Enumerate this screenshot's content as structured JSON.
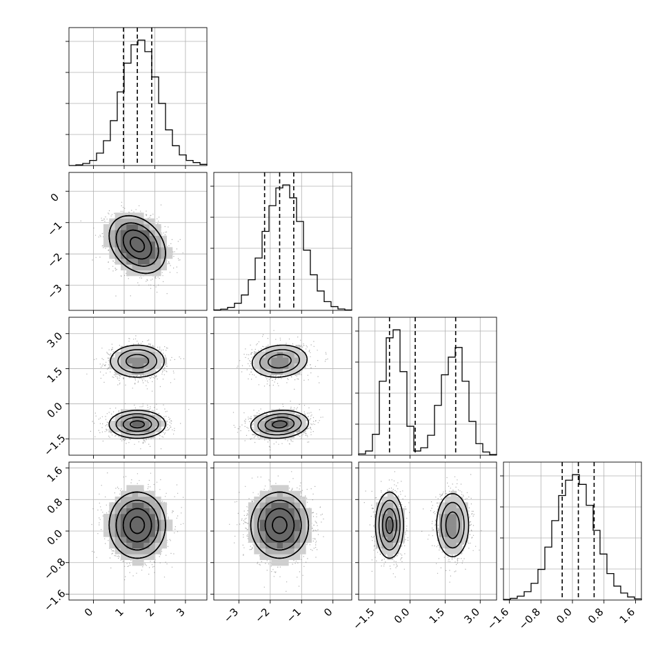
{
  "chart_data": {
    "type": "corner",
    "parameters": [
      {
        "range": [
          -0.8,
          3.7
        ],
        "ticks": [
          0,
          1,
          2,
          3
        ],
        "tick_labels": [
          "0",
          "1",
          "2",
          "3"
        ],
        "quantiles": [
          0.98,
          1.43,
          1.9
        ],
        "hist_counts": [
          0,
          0.3,
          0.9,
          2.2,
          5.4,
          10.8,
          19.5,
          32.0,
          44.5,
          52.5,
          54.5,
          49.5,
          38.5,
          27.0,
          15.5,
          8.6,
          4.6,
          2.2,
          1.3,
          0.5
        ]
      },
      {
        "range": [
          -3.8,
          0.6
        ],
        "ticks": [
          -3,
          -2,
          -1,
          0
        ],
        "tick_labels": [
          "−3",
          "−2",
          "−1",
          "0"
        ],
        "quantiles": [
          -2.18,
          -1.7,
          -1.25
        ],
        "hist_counts": [
          0.2,
          0.6,
          1.5,
          3.6,
          7.8,
          15.5,
          26.5,
          40.0,
          53.0,
          62.0,
          63.5,
          57.0,
          45.0,
          30.5,
          18.0,
          9.8,
          4.4,
          1.9,
          0.7,
          0.2
        ]
      },
      {
        "range": [
          -2.2,
          3.7
        ],
        "ticks": [
          -1.5,
          0.0,
          1.5,
          3.0
        ],
        "tick_labels": [
          "−1.5",
          "0.0",
          "1.5",
          "3.0"
        ],
        "quantiles": [
          -0.88,
          0.22,
          1.95
        ],
        "hist_counts": [
          0.4,
          1.3,
          6.5,
          23.0,
          36.5,
          39.0,
          26.0,
          9.0,
          1.3,
          2.3,
          6.2,
          15.5,
          25.0,
          30.5,
          33.5,
          23.0,
          10.5,
          3.6,
          1.0,
          0.2
        ]
      },
      {
        "range": [
          -1.75,
          1.75
        ],
        "ticks": [
          -1.6,
          -0.8,
          0.0,
          0.8,
          1.6
        ],
        "tick_labels": [
          "−1.6",
          "−0.8",
          "0.0",
          "0.8",
          "1.6"
        ],
        "quantiles": [
          -0.26,
          0.15,
          0.55
        ],
        "hist_counts": [
          0.2,
          0.6,
          1.4,
          3.0,
          6.0,
          11.0,
          19.0,
          28.5,
          37.5,
          43.0,
          45.0,
          41.5,
          34.0,
          25.0,
          16.5,
          9.5,
          5.0,
          2.5,
          1.1,
          0.4
        ]
      }
    ],
    "blobs": [
      {
        "means": [
          1.43,
          -1.7,
          -0.88,
          0.15
        ],
        "sds": [
          0.46,
          0.46,
          0.3,
          0.42
        ],
        "weight": 0.5
      },
      {
        "means": [
          1.43,
          -1.7,
          1.82,
          0.15
        ],
        "sds": [
          0.46,
          0.46,
          0.36,
          0.42
        ],
        "weight": 0.5
      }
    ],
    "correlations": {
      "0-1": -0.3,
      "0-2": 0.0,
      "0-3": 0.0,
      "1-2": 0.12,
      "1-3": 0.0,
      "2-3": 0.0
    },
    "contour_levels_sigma": [
      0.5,
      1.0,
      1.5,
      2.0
    ],
    "grid": true,
    "title": "",
    "xlabel": "",
    "ylabel": ""
  }
}
